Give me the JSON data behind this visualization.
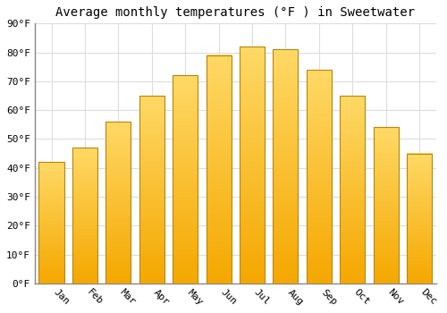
{
  "title": "Average monthly temperatures (°F ) in Sweetwater",
  "months": [
    "Jan",
    "Feb",
    "Mar",
    "Apr",
    "May",
    "Jun",
    "Jul",
    "Aug",
    "Sep",
    "Oct",
    "Nov",
    "Dec"
  ],
  "values": [
    42,
    47,
    56,
    65,
    72,
    79,
    82,
    81,
    74,
    65,
    54,
    45
  ],
  "bar_color_bottom": "#F5A800",
  "bar_color_top": "#FFD966",
  "bar_edge_color": "#B8860B",
  "background_color": "#FFFFFF",
  "plot_bg_color": "#FFFFFF",
  "grid_color": "#DDDDDD",
  "ylim": [
    0,
    90
  ],
  "yticks": [
    0,
    10,
    20,
    30,
    40,
    50,
    60,
    70,
    80,
    90
  ],
  "title_fontsize": 10,
  "tick_fontsize": 8,
  "font_family": "monospace",
  "bar_width": 0.75
}
